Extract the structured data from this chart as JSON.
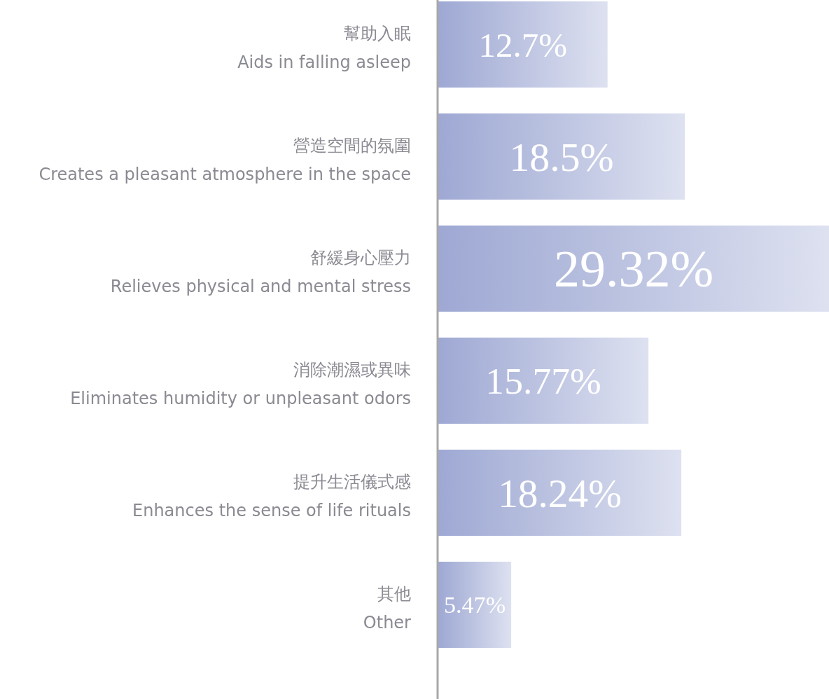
{
  "chart_data": {
    "type": "bar",
    "orientation": "horizontal",
    "data_labels": true,
    "categories": [
      "幫助入眠\nAids in falling asleep",
      "營造空間的氛圍\nCreates a pleasant atmosphere in the space",
      "舒緩身心壓力\nRelieves physical and mental stress",
      "消除潮濕或異味\nEliminates humidity or unpleasant odors",
      "提升生活儀式感\nEnhances the sense of life rituals",
      "其他\nOther"
    ],
    "values": [
      12.7,
      18.5,
      29.32,
      15.77,
      18.24,
      5.47
    ],
    "value_labels": [
      "12.7%",
      "18.5%",
      "29.32%",
      "15.77%",
      "18.24%",
      "5.47%"
    ],
    "color": "#9ea8d3"
  }
}
